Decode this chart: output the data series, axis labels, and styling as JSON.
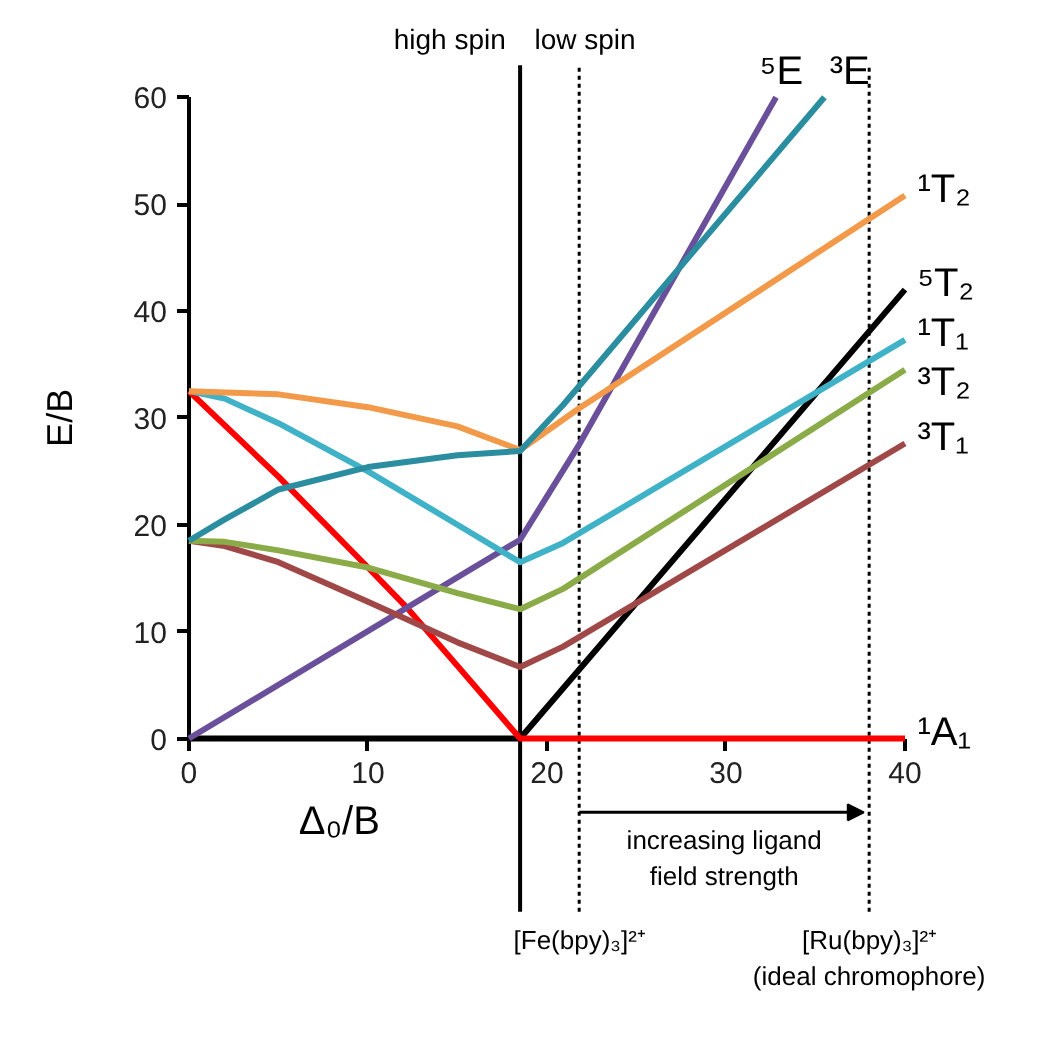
{
  "chart_data": {
    "type": "line",
    "xlabel": "Δ₀/B",
    "ylabel": "E/B",
    "xlim": [
      0,
      40
    ],
    "ylim": [
      0,
      60
    ],
    "xticks": [
      0,
      10,
      20,
      30,
      40
    ],
    "yticks": [
      0,
      10,
      20,
      30,
      40,
      50,
      60
    ],
    "grid": false,
    "marker": "none",
    "line_style": "solid",
    "series": [
      {
        "name": "⁵T₂",
        "color": "#000000",
        "x": [
          0,
          18.5,
          40
        ],
        "values": [
          0,
          0,
          42
        ]
      },
      {
        "name": "¹A₁",
        "color": "#ff0000",
        "x": [
          0,
          5,
          10,
          12.2,
          15,
          18.5,
          40
        ],
        "values": [
          32.5,
          24.5,
          16,
          12.2,
          6.8,
          0,
          0
        ]
      },
      {
        "name": "⁵E",
        "color": "#6a4f9a",
        "x": [
          0,
          18.5,
          21.8,
          32.8
        ],
        "values": [
          0,
          18.6,
          27.5,
          60
        ]
      },
      {
        "name": "³T₁",
        "color": "#a04848",
        "x": [
          0,
          2,
          5,
          10,
          15,
          18.5,
          20.9,
          40
        ],
        "values": [
          18.5,
          18,
          16.5,
          12.8,
          9,
          6.7,
          8.6,
          27.6
        ]
      },
      {
        "name": "³T₂",
        "color": "#8aab48",
        "x": [
          0,
          2,
          5,
          10,
          15,
          18.5,
          20.9,
          40
        ],
        "values": [
          18.5,
          18.4,
          17.6,
          16,
          13.6,
          12.1,
          14,
          34.5
        ]
      },
      {
        "name": "¹T₁",
        "color": "#3fb2c8",
        "x": [
          0,
          2,
          5,
          10,
          15,
          18.5,
          20.9,
          40
        ],
        "values": [
          32.5,
          31.8,
          29.5,
          25,
          20,
          16.5,
          18.3,
          37.3
        ]
      },
      {
        "name": "¹T₂",
        "color": "#f39a4a",
        "x": [
          0,
          5,
          10,
          15,
          18.5,
          21.8,
          40
        ],
        "values": [
          32.5,
          32.2,
          31,
          29.2,
          27,
          30.9,
          50.8
        ]
      },
      {
        "name": "³E",
        "color": "#2b8ea0",
        "x": [
          0,
          2,
          5,
          10,
          15,
          18.5,
          20.9,
          35.5
        ],
        "values": [
          18.5,
          20.5,
          23.3,
          25.4,
          26.5,
          26.9,
          31.2,
          60
        ]
      }
    ],
    "ref_lines": [
      {
        "axis": "x",
        "value": 18.5,
        "label": null,
        "color": "#000000",
        "line_style": "solid"
      },
      {
        "axis": "x",
        "value": 21.8,
        "label": "[Fe(bpy)₃]²⁺",
        "color": "#000000",
        "line_style": "dotted"
      },
      {
        "axis": "x",
        "value": 38,
        "label": "[Ru(bpy)₃]²⁺\n(ideal chromophore)",
        "color": "#000000",
        "line_style": "dotted"
      }
    ],
    "annotations": [
      "high spin",
      "low spin",
      "increasing ligand\nfield strength"
    ]
  }
}
